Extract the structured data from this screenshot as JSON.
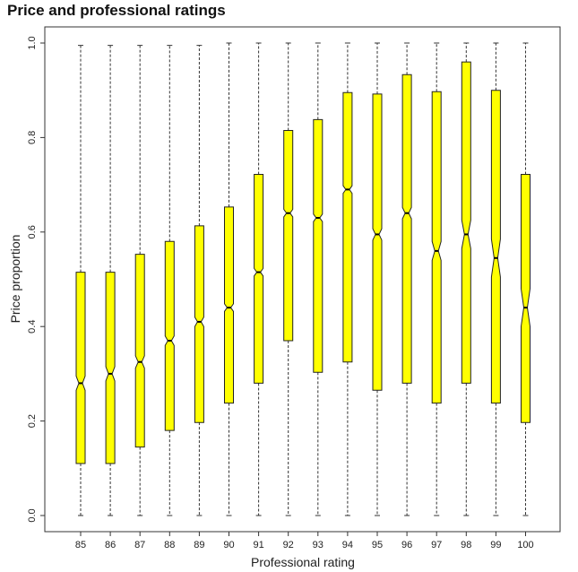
{
  "chart_data": {
    "type": "boxplot",
    "title": "Price and professional ratings",
    "xlabel": "Professional rating",
    "ylabel": "Price proportion",
    "ylim": [
      0.0,
      1.0
    ],
    "yticks": [
      "0.0",
      "0.2",
      "0.4",
      "0.6",
      "0.8",
      "1.0"
    ],
    "notched": true,
    "box_color": "#ffff00",
    "grid": false,
    "categories": [
      "85",
      "86",
      "87",
      "88",
      "89",
      "90",
      "91",
      "92",
      "93",
      "94",
      "95",
      "96",
      "97",
      "98",
      "99",
      "100"
    ],
    "boxes": [
      {
        "category": "85",
        "min": 0.0,
        "q1": 0.11,
        "median": 0.28,
        "q3": 0.515,
        "max": 0.995,
        "notch_low": 0.265,
        "notch_high": 0.295
      },
      {
        "category": "86",
        "min": 0.0,
        "q1": 0.11,
        "median": 0.3,
        "q3": 0.515,
        "max": 0.995,
        "notch_low": 0.285,
        "notch_high": 0.315
      },
      {
        "category": "87",
        "min": 0.0,
        "q1": 0.145,
        "median": 0.325,
        "q3": 0.553,
        "max": 0.995,
        "notch_low": 0.312,
        "notch_high": 0.338
      },
      {
        "category": "88",
        "min": 0.0,
        "q1": 0.18,
        "median": 0.37,
        "q3": 0.58,
        "max": 0.995,
        "notch_low": 0.36,
        "notch_high": 0.38
      },
      {
        "category": "89",
        "min": 0.0,
        "q1": 0.197,
        "median": 0.41,
        "q3": 0.613,
        "max": 0.995,
        "notch_low": 0.4,
        "notch_high": 0.42
      },
      {
        "category": "90",
        "min": 0.0,
        "q1": 0.238,
        "median": 0.44,
        "q3": 0.653,
        "max": 1.0,
        "notch_low": 0.432,
        "notch_high": 0.448
      },
      {
        "category": "91",
        "min": 0.0,
        "q1": 0.28,
        "median": 0.515,
        "q3": 0.722,
        "max": 1.0,
        "notch_low": 0.507,
        "notch_high": 0.523
      },
      {
        "category": "92",
        "min": 0.0,
        "q1": 0.37,
        "median": 0.64,
        "q3": 0.815,
        "max": 1.0,
        "notch_low": 0.632,
        "notch_high": 0.648
      },
      {
        "category": "93",
        "min": 0.0,
        "q1": 0.303,
        "median": 0.63,
        "q3": 0.838,
        "max": 1.0,
        "notch_low": 0.622,
        "notch_high": 0.638
      },
      {
        "category": "94",
        "min": 0.0,
        "q1": 0.325,
        "median": 0.69,
        "q3": 0.895,
        "max": 1.0,
        "notch_low": 0.682,
        "notch_high": 0.698
      },
      {
        "category": "95",
        "min": 0.0,
        "q1": 0.265,
        "median": 0.595,
        "q3": 0.892,
        "max": 1.0,
        "notch_low": 0.583,
        "notch_high": 0.607
      },
      {
        "category": "96",
        "min": 0.0,
        "q1": 0.28,
        "median": 0.64,
        "q3": 0.933,
        "max": 1.0,
        "notch_low": 0.628,
        "notch_high": 0.652
      },
      {
        "category": "97",
        "min": 0.0,
        "q1": 0.238,
        "median": 0.56,
        "q3": 0.897,
        "max": 1.0,
        "notch_low": 0.54,
        "notch_high": 0.58
      },
      {
        "category": "98",
        "min": 0.0,
        "q1": 0.28,
        "median": 0.595,
        "q3": 0.96,
        "max": 1.0,
        "notch_low": 0.565,
        "notch_high": 0.625
      },
      {
        "category": "99",
        "min": 0.0,
        "q1": 0.238,
        "median": 0.545,
        "q3": 0.9,
        "max": 1.0,
        "notch_low": 0.505,
        "notch_high": 0.585
      },
      {
        "category": "100",
        "min": 0.0,
        "q1": 0.197,
        "median": 0.44,
        "q3": 0.722,
        "max": 1.0,
        "notch_low": 0.4,
        "notch_high": 0.48
      }
    ]
  }
}
